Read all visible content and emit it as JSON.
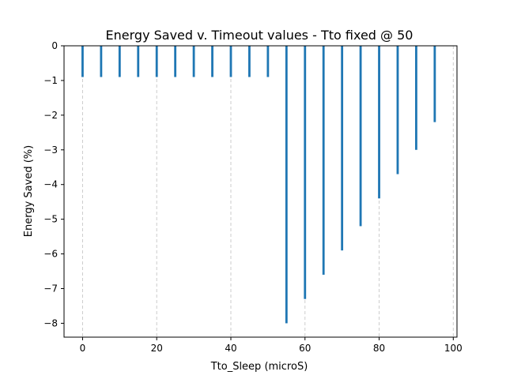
{
  "chart_data": {
    "type": "bar",
    "title": "Energy Saved v. Timeout values - Tto fixed @ 50",
    "xlabel": "Tto_Sleep (microS)",
    "ylabel": "Energy Saved (%)",
    "x": [
      0,
      5,
      10,
      15,
      20,
      25,
      30,
      35,
      40,
      45,
      50,
      55,
      60,
      65,
      70,
      75,
      80,
      85,
      90,
      95
    ],
    "values": [
      -0.9,
      -0.9,
      -0.9,
      -0.9,
      -0.9,
      -0.9,
      -0.9,
      -0.9,
      -0.9,
      -0.9,
      -0.9,
      -8.0,
      -7.3,
      -6.6,
      -5.9,
      -5.2,
      -4.4,
      -3.7,
      -3.0,
      -2.2
    ],
    "bar_width": 0.6,
    "xlim": [
      -5,
      101
    ],
    "ylim": [
      -8.4,
      0
    ],
    "xticks": [
      0,
      20,
      40,
      60,
      80,
      100
    ],
    "xtick_labels": [
      "0",
      "20",
      "40",
      "60",
      "80",
      "100"
    ],
    "yticks": [
      0,
      -1,
      -2,
      -3,
      -4,
      -5,
      -6,
      -7,
      -8
    ],
    "ytick_labels": [
      "0",
      "−1",
      "−2",
      "−3",
      "−4",
      "−5",
      "−6",
      "−7",
      "−8"
    ],
    "grid": "x-major-dashed",
    "legend": "none",
    "colors": {
      "bar": "#1f77b4",
      "grid": "#cccccc",
      "axis": "#000000"
    }
  }
}
